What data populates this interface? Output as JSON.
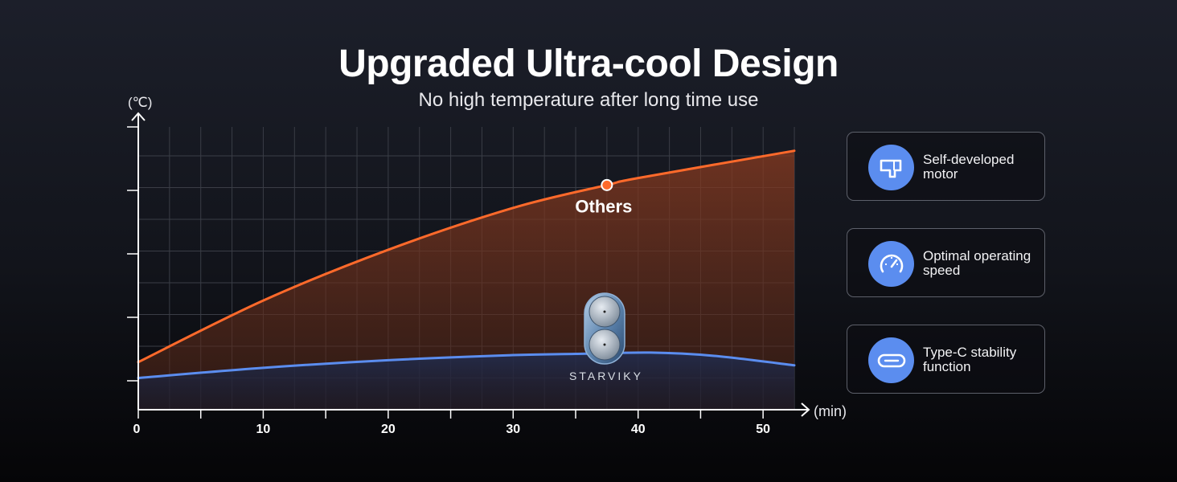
{
  "header": {
    "title": "Upgraded Ultra-cool Design",
    "subtitle": "No high temperature after long time use"
  },
  "chart_data": {
    "type": "line",
    "ylabel": "(℃)",
    "xlabel": "(min)",
    "xlim": [
      0,
      52.5
    ],
    "x_ticks": [
      0,
      10,
      20,
      30,
      40,
      50
    ],
    "grid": true,
    "series": [
      {
        "name": "Others",
        "color": "#ff6a2b",
        "points": [
          [
            0,
            0.75
          ],
          [
            10,
            1.72
          ],
          [
            20,
            2.52
          ],
          [
            30,
            3.18
          ],
          [
            37.5,
            3.54
          ],
          [
            40,
            3.65
          ],
          [
            52.5,
            4.08
          ]
        ]
      },
      {
        "name": "",
        "color": "#5b8def",
        "points": [
          [
            0,
            0.5
          ],
          [
            10,
            0.66
          ],
          [
            20,
            0.78
          ],
          [
            30,
            0.86
          ],
          [
            35,
            0.88
          ],
          [
            41,
            0.9
          ],
          [
            46,
            0.85
          ],
          [
            52.5,
            0.7
          ]
        ]
      }
    ],
    "highlight": {
      "series": "Others",
      "x": 37.5,
      "label": "Others"
    }
  },
  "product": {
    "brand": "STARVIKY"
  },
  "features": [
    {
      "icon": "motor-icon",
      "label": "Self-developed motor"
    },
    {
      "icon": "speedometer-icon",
      "label": "Optimal operating speed"
    },
    {
      "icon": "usb-c-icon",
      "label": "Type-C stability function"
    }
  ]
}
